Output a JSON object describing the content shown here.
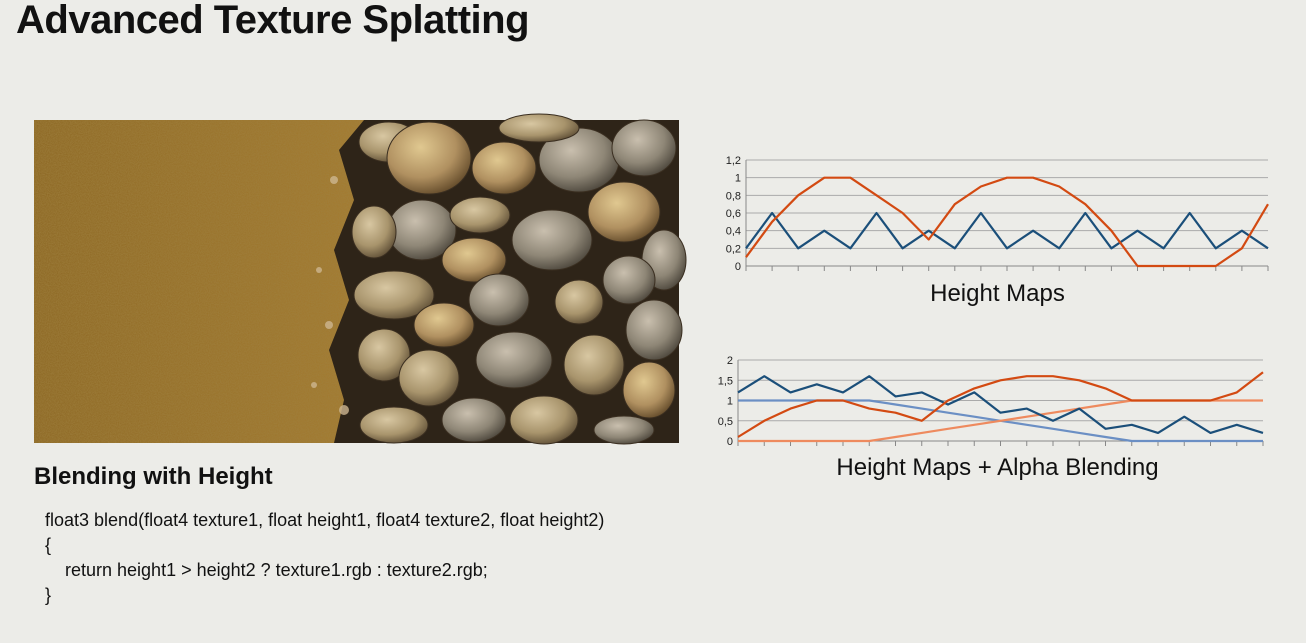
{
  "slide": {
    "title": "Advanced Texture Splatting",
    "subheading": "Blending with Height",
    "code_lines": [
      "float3 blend(float4 texture1, float height1, float4 texture2, float height2)",
      "{",
      "    return height1 > height2 ? texture1.rgb : texture2.rgb;",
      "}"
    ]
  },
  "colors": {
    "blue_series": "#1b4f7a",
    "orange_series": "#d34a12",
    "light_blue_series": "#6b8fc4",
    "light_orange_series": "#ee8a5e",
    "grid": "#aaaaaa",
    "axis": "#888888"
  },
  "chart_data": [
    {
      "type": "line",
      "caption": "Height Maps",
      "ylim": [
        0,
        1.2
      ],
      "yticks": [
        "0",
        "0,2",
        "0,4",
        "0,6",
        "0,8",
        "1",
        "1,2"
      ],
      "grid": true,
      "x_count": 21,
      "series": [
        {
          "color_key": "blue_series",
          "values": [
            0.2,
            0.6,
            0.2,
            0.4,
            0.2,
            0.6,
            0.2,
            0.4,
            0.2,
            0.6,
            0.2,
            0.4,
            0.2,
            0.6,
            0.2,
            0.4,
            0.2,
            0.6,
            0.2,
            0.4,
            0.2
          ]
        },
        {
          "color_key": "orange_series",
          "values": [
            0.1,
            0.5,
            0.8,
            1.0,
            1.0,
            0.8,
            0.6,
            0.3,
            0.7,
            0.9,
            1.0,
            1.0,
            0.9,
            0.7,
            0.4,
            0.0,
            0.0,
            0.0,
            0.0,
            0.2,
            0.7
          ]
        }
      ]
    },
    {
      "type": "line",
      "caption": "Height Maps + Alpha Blending",
      "ylim": [
        0,
        2
      ],
      "yticks": [
        "0",
        "0,5",
        "1",
        "1,5",
        "2"
      ],
      "grid": true,
      "x_count": 21,
      "series": [
        {
          "color_key": "light_blue_series",
          "values": [
            1.0,
            1.0,
            1.0,
            1.0,
            1.0,
            1.0,
            0.9,
            0.8,
            0.7,
            0.6,
            0.5,
            0.4,
            0.3,
            0.2,
            0.1,
            0.0,
            0.0,
            0.0,
            0.0,
            0.0,
            0.0
          ]
        },
        {
          "color_key": "light_orange_series",
          "values": [
            0.0,
            0.0,
            0.0,
            0.0,
            0.0,
            0.0,
            0.1,
            0.2,
            0.3,
            0.4,
            0.5,
            0.6,
            0.7,
            0.8,
            0.9,
            1.0,
            1.0,
            1.0,
            1.0,
            1.0,
            1.0
          ]
        },
        {
          "color_key": "blue_series",
          "values": [
            1.2,
            1.6,
            1.2,
            1.4,
            1.2,
            1.6,
            1.1,
            1.2,
            0.9,
            1.2,
            0.7,
            0.8,
            0.5,
            0.8,
            0.3,
            0.4,
            0.2,
            0.6,
            0.2,
            0.4,
            0.2
          ]
        },
        {
          "color_key": "orange_series",
          "values": [
            0.1,
            0.5,
            0.8,
            1.0,
            1.0,
            0.8,
            0.7,
            0.5,
            1.0,
            1.3,
            1.5,
            1.6,
            1.6,
            1.5,
            1.3,
            1.0,
            1.0,
            1.0,
            1.0,
            1.2,
            1.7
          ]
        }
      ]
    }
  ]
}
